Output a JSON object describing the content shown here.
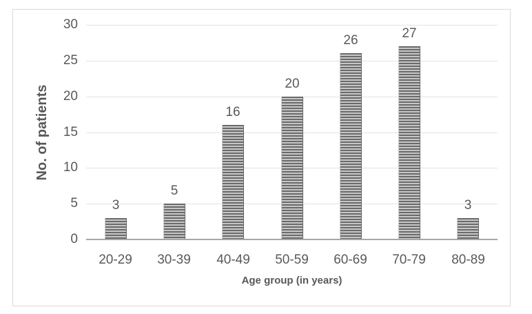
{
  "colors": {
    "frame_border": "#d9d9d9",
    "gridline": "#e2e2e2",
    "axis_line": "#a6a6a6",
    "text": "#595959",
    "bar_stripe_dark": "#6a6a6a",
    "bar_stripe_light": "#c7c7c7",
    "background": "#ffffff"
  },
  "chart_data": {
    "type": "bar",
    "categories": [
      "20-29",
      "30-39",
      "40-49",
      "50-59",
      "60-69",
      "70-79",
      "80-89"
    ],
    "values": [
      3,
      5,
      16,
      20,
      26,
      27,
      3
    ],
    "title": "",
    "xlabel": "Age group (in years)",
    "ylabel": "No. of patients",
    "ylim": [
      0,
      30
    ],
    "yticks": [
      0,
      5,
      10,
      15,
      20,
      25,
      30
    ],
    "grid": "horizontal",
    "legend": "none",
    "bar_fill": "horizontal-stripes",
    "data_labels": "above-bars"
  }
}
